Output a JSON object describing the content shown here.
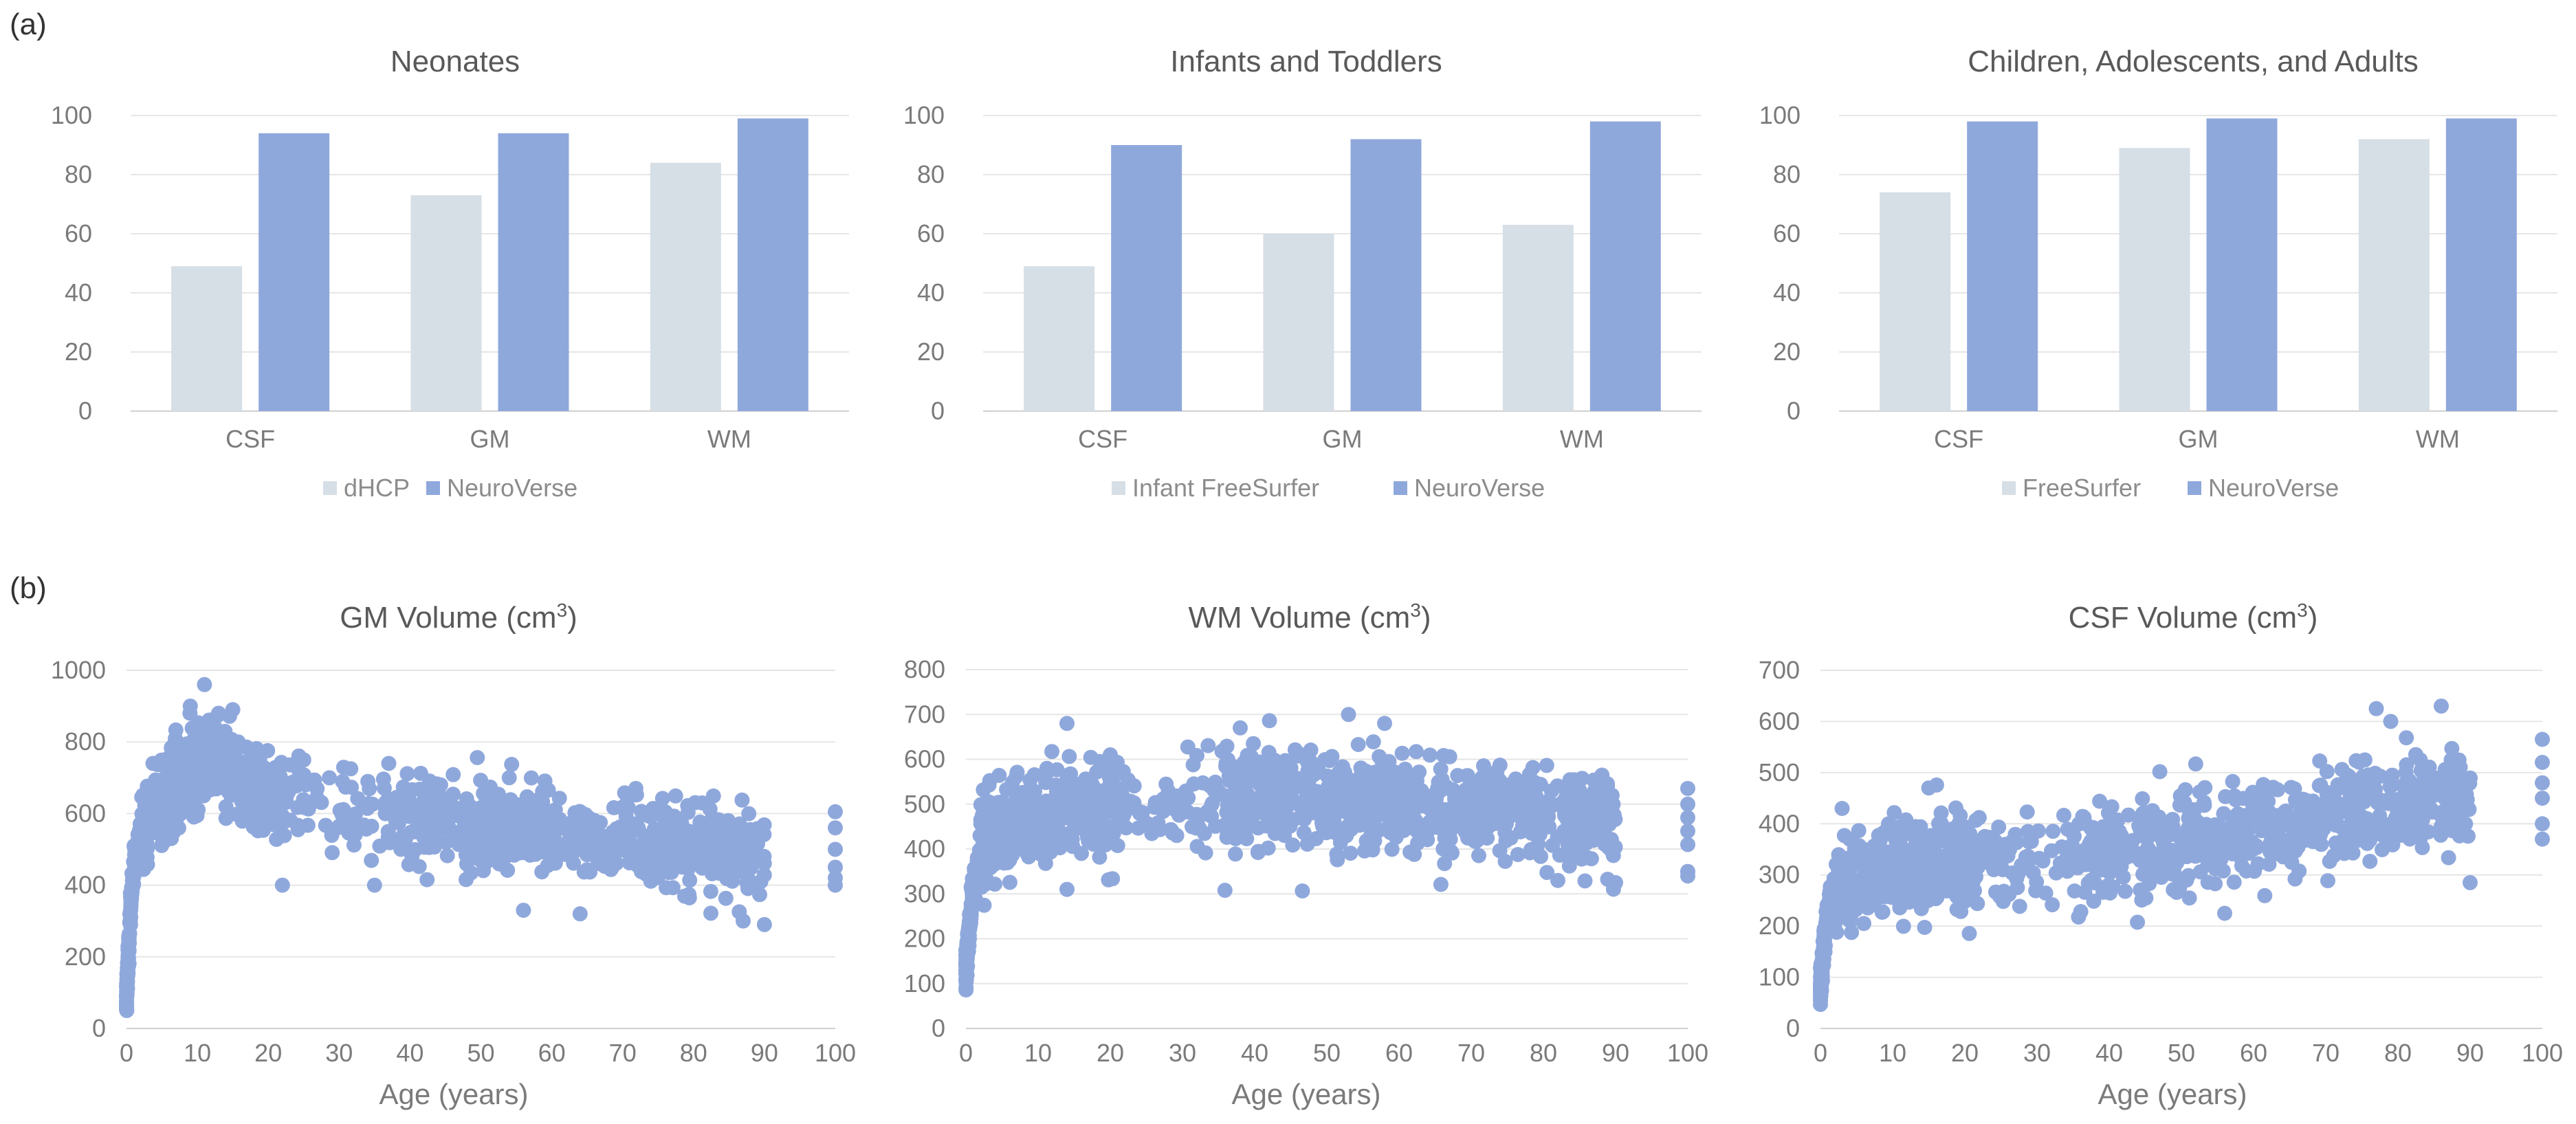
{
  "figure": {
    "label_a": "(a)",
    "label_b": "(b)"
  },
  "colors": {
    "baseline": "#d6dee6",
    "neuroverse": "#8fa8dc",
    "scatter": "#8fa8dc"
  },
  "chart_data": [
    {
      "type": "bar",
      "title": "Neonates",
      "categories": [
        "CSF",
        "GM",
        "WM"
      ],
      "series": [
        {
          "name": "dHCP",
          "values": [
            49,
            73,
            84
          ]
        },
        {
          "name": "NeuroVerse",
          "values": [
            94,
            94,
            99
          ]
        }
      ],
      "ylim": [
        0,
        100
      ],
      "yticks": [
        "0",
        "20",
        "40",
        "60",
        "80",
        "100"
      ],
      "grid": true,
      "legend": "bottom"
    },
    {
      "type": "bar",
      "title": "Infants and Toddlers",
      "categories": [
        "CSF",
        "GM",
        "WM"
      ],
      "series": [
        {
          "name": "Infant FreeSurfer",
          "values": [
            49,
            60,
            63
          ]
        },
        {
          "name": "NeuroVerse",
          "values": [
            90,
            92,
            98
          ]
        }
      ],
      "ylim": [
        0,
        100
      ],
      "yticks": [
        "0",
        "20",
        "40",
        "60",
        "80",
        "100"
      ],
      "grid": true,
      "legend": "bottom"
    },
    {
      "type": "bar",
      "title": "Children, Adolescents, and Adults",
      "categories": [
        "CSF",
        "GM",
        "WM"
      ],
      "series": [
        {
          "name": "FreeSurfer",
          "values": [
            74,
            89,
            92
          ]
        },
        {
          "name": "NeuroVerse",
          "values": [
            98,
            99,
            99
          ]
        }
      ],
      "ylim": [
        0,
        100
      ],
      "yticks": [
        "0",
        "20",
        "40",
        "60",
        "80",
        "100"
      ],
      "grid": true,
      "legend": "bottom"
    },
    {
      "type": "scatter",
      "title": "GM Volume (cm",
      "title_sup": "3",
      "title_end": ")",
      "xlabel": "Age (years)",
      "xlim": [
        0,
        100
      ],
      "ylim": [
        0,
        1000
      ],
      "xticks": [
        "0",
        "10",
        "20",
        "30",
        "40",
        "50",
        "60",
        "70",
        "80",
        "90",
        "100"
      ],
      "yticks": [
        "0",
        "200",
        "400",
        "600",
        "800",
        "1000"
      ],
      "grid": true,
      "trend": [
        [
          0,
          90
        ],
        [
          0.3,
          220
        ],
        [
          0.7,
          380
        ],
        [
          1.2,
          470
        ],
        [
          2,
          550
        ],
        [
          4,
          620
        ],
        [
          7,
          680
        ],
        [
          10,
          730
        ],
        [
          13,
          730
        ],
        [
          16,
          700
        ],
        [
          20,
          650
        ],
        [
          30,
          600
        ],
        [
          40,
          585
        ],
        [
          50,
          565
        ],
        [
          60,
          550
        ],
        [
          70,
          530
        ],
        [
          80,
          510
        ],
        [
          90,
          490
        ]
      ],
      "spread": 60,
      "outliers": [
        [
          11,
          960
        ],
        [
          9,
          900
        ],
        [
          15,
          890
        ],
        [
          13,
          880
        ],
        [
          37,
          740
        ],
        [
          25,
          750
        ],
        [
          54,
          700
        ],
        [
          87,
          300
        ],
        [
          90,
          290
        ],
        [
          56,
          330
        ],
        [
          64,
          320
        ],
        [
          35,
          400
        ],
        [
          22,
          400
        ],
        [
          100,
          605
        ],
        [
          100,
          560
        ],
        [
          100,
          500
        ],
        [
          100,
          450
        ],
        [
          100,
          420
        ],
        [
          100,
          400
        ]
      ],
      "count": 1300
    },
    {
      "type": "scatter",
      "title": "WM Volume (cm",
      "title_sup": "3",
      "title_end": ")",
      "xlabel": "Age (years)",
      "xlim": [
        0,
        100
      ],
      "ylim": [
        0,
        800
      ],
      "xticks": [
        "0",
        "10",
        "20",
        "30",
        "40",
        "50",
        "60",
        "70",
        "80",
        "90",
        "100"
      ],
      "yticks": [
        "0",
        "100",
        "200",
        "300",
        "400",
        "500",
        "600",
        "700",
        "800"
      ],
      "grid": true,
      "trend": [
        [
          0,
          130
        ],
        [
          0.3,
          190
        ],
        [
          0.7,
          270
        ],
        [
          1.2,
          330
        ],
        [
          2,
          380
        ],
        [
          4,
          420
        ],
        [
          8,
          460
        ],
        [
          12,
          480
        ],
        [
          16,
          490
        ],
        [
          20,
          495
        ],
        [
          30,
          500
        ],
        [
          40,
          505
        ],
        [
          50,
          510
        ],
        [
          60,
          505
        ],
        [
          70,
          495
        ],
        [
          80,
          480
        ],
        [
          90,
          465
        ]
      ],
      "spread": 55,
      "outliers": [
        [
          53,
          700
        ],
        [
          14,
          680
        ],
        [
          38,
          670
        ],
        [
          58,
          680
        ],
        [
          20,
          610
        ],
        [
          14,
          310
        ],
        [
          90,
          325
        ],
        [
          82,
          330
        ],
        [
          100,
          535
        ],
        [
          100,
          500
        ],
        [
          100,
          470
        ],
        [
          100,
          440
        ],
        [
          100,
          410
        ],
        [
          100,
          350
        ],
        [
          100,
          340
        ]
      ],
      "count": 1300
    },
    {
      "type": "scatter",
      "title": "CSF Volume (cm",
      "title_sup": "3",
      "title_end": ")",
      "xlabel": "Age (years)",
      "xlim": [
        0,
        100
      ],
      "ylim": [
        0,
        700
      ],
      "xticks": [
        "0",
        "10",
        "20",
        "30",
        "40",
        "50",
        "60",
        "70",
        "80",
        "90",
        "100"
      ],
      "yticks": [
        "0",
        "100",
        "200",
        "300",
        "400",
        "500",
        "600",
        "700"
      ],
      "grid": true,
      "trend": [
        [
          0,
          75
        ],
        [
          0.3,
          130
        ],
        [
          0.7,
          190
        ],
        [
          1.2,
          230
        ],
        [
          2,
          260
        ],
        [
          4,
          280
        ],
        [
          8,
          300
        ],
        [
          12,
          315
        ],
        [
          16,
          320
        ],
        [
          20,
          320
        ],
        [
          30,
          330
        ],
        [
          40,
          345
        ],
        [
          50,
          365
        ],
        [
          60,
          385
        ],
        [
          70,
          415
        ],
        [
          80,
          440
        ],
        [
          90,
          455
        ]
      ],
      "spread": 45,
      "outliers": [
        [
          77,
          625
        ],
        [
          86,
          630
        ],
        [
          79,
          600
        ],
        [
          3,
          430
        ],
        [
          15,
          470
        ],
        [
          90,
          285
        ],
        [
          56,
          225
        ],
        [
          100,
          565
        ],
        [
          100,
          520
        ],
        [
          100,
          480
        ],
        [
          100,
          450
        ],
        [
          100,
          400
        ],
        [
          100,
          370
        ]
      ],
      "count": 1300
    }
  ]
}
